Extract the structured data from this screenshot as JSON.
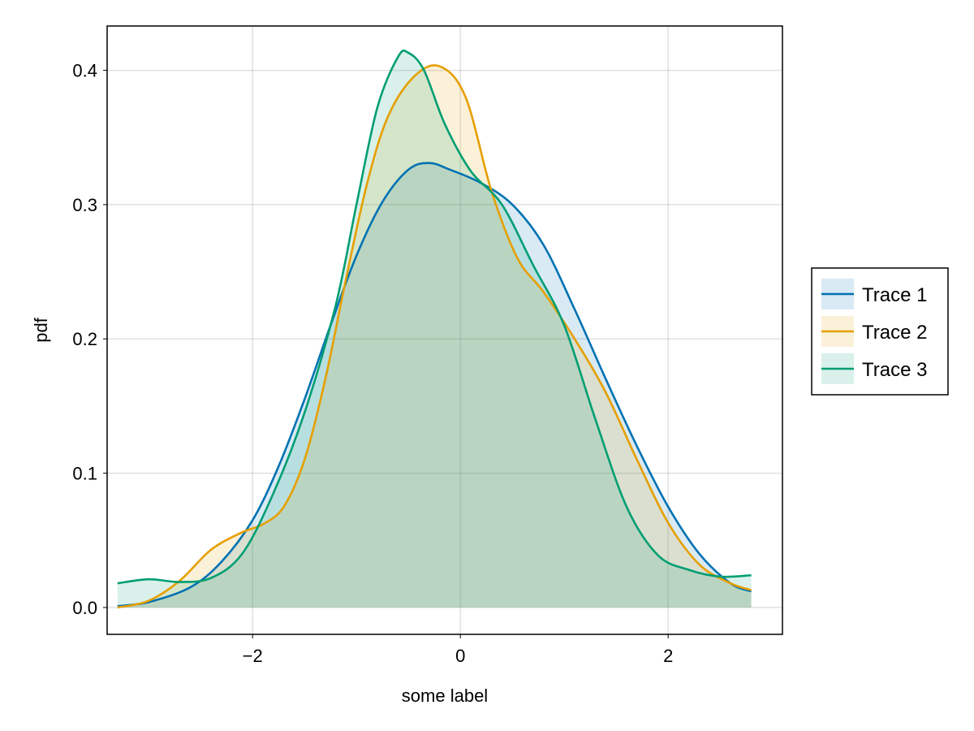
{
  "chart_data": {
    "type": "area",
    "xlabel": "some label",
    "ylabel": "pdf",
    "xlim": [
      -3.4,
      3.1
    ],
    "ylim": [
      -0.02,
      0.433
    ],
    "x_ticks": [
      -2,
      0,
      2
    ],
    "x_tick_labels": [
      "−2",
      "0",
      "2"
    ],
    "y_ticks": [
      0.0,
      0.1,
      0.2,
      0.3,
      0.4
    ],
    "y_tick_labels": [
      "0.0",
      "0.1",
      "0.2",
      "0.3",
      "0.4"
    ],
    "grid": true,
    "legend_position": "right",
    "fill_opacity": 0.15,
    "series": [
      {
        "name": "Trace 1",
        "color": "#0072b2",
        "x": [
          -3.3,
          -3.0,
          -2.6,
          -2.3,
          -2.0,
          -1.75,
          -1.5,
          -1.25,
          -1.0,
          -0.75,
          -0.5,
          -0.3,
          -0.1,
          0.2,
          0.5,
          0.8,
          1.1,
          1.4,
          1.7,
          2.0,
          2.3,
          2.6,
          2.8
        ],
        "y": [
          0.001,
          0.004,
          0.015,
          0.034,
          0.065,
          0.105,
          0.155,
          0.21,
          0.262,
          0.302,
          0.326,
          0.331,
          0.326,
          0.316,
          0.3,
          0.27,
          0.222,
          0.17,
          0.12,
          0.075,
          0.04,
          0.018,
          0.012
        ]
      },
      {
        "name": "Trace 2",
        "color": "#e69f00",
        "x": [
          -3.3,
          -3.0,
          -2.7,
          -2.4,
          -2.1,
          -1.9,
          -1.7,
          -1.5,
          -1.3,
          -1.1,
          -0.9,
          -0.7,
          -0.45,
          -0.2,
          0.05,
          0.3,
          0.55,
          0.8,
          1.1,
          1.4,
          1.7,
          2.0,
          2.3,
          2.6,
          2.8
        ],
        "y": [
          0.0,
          0.005,
          0.02,
          0.043,
          0.056,
          0.062,
          0.075,
          0.11,
          0.17,
          0.245,
          0.315,
          0.365,
          0.395,
          0.403,
          0.38,
          0.31,
          0.26,
          0.235,
          0.2,
          0.16,
          0.11,
          0.063,
          0.032,
          0.018,
          0.013
        ]
      },
      {
        "name": "Trace 3",
        "color": "#009e73",
        "x": [
          -3.3,
          -3.0,
          -2.7,
          -2.4,
          -2.1,
          -1.8,
          -1.5,
          -1.2,
          -1.0,
          -0.8,
          -0.6,
          -0.5,
          -0.35,
          -0.15,
          0.1,
          0.4,
          0.7,
          1.0,
          1.3,
          1.6,
          1.9,
          2.2,
          2.5,
          2.8
        ],
        "y": [
          0.018,
          0.021,
          0.019,
          0.022,
          0.04,
          0.085,
          0.145,
          0.225,
          0.3,
          0.372,
          0.41,
          0.413,
          0.4,
          0.36,
          0.325,
          0.3,
          0.255,
          0.21,
          0.14,
          0.075,
          0.039,
          0.028,
          0.023,
          0.024
        ]
      }
    ]
  }
}
